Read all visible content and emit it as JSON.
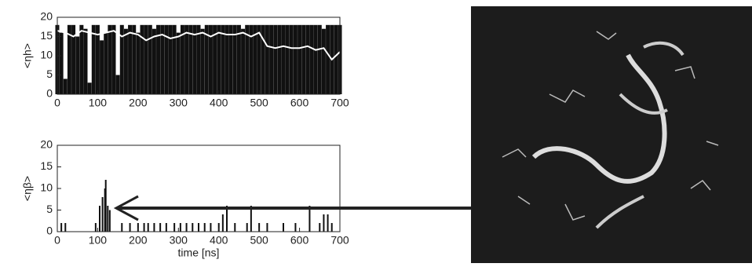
{
  "chart_data": [
    {
      "type": "bar",
      "ylabel": "<ηh>",
      "x": [
        0,
        10,
        20,
        30,
        40,
        50,
        60,
        70,
        80,
        90,
        100,
        110,
        120,
        130,
        140,
        150,
        160,
        170,
        180,
        190,
        200,
        210,
        220,
        230,
        240,
        250,
        260,
        270,
        280,
        290,
        300,
        310,
        320,
        330,
        340,
        350,
        360,
        370,
        380,
        390,
        400,
        410,
        420,
        430,
        440,
        450,
        460,
        470,
        480,
        490,
        500,
        510,
        520,
        530,
        540,
        550,
        560,
        570,
        580,
        590,
        600,
        610,
        620,
        630,
        640,
        650,
        660,
        670,
        680,
        690,
        700
      ],
      "values": [
        18,
        16,
        4,
        18,
        18,
        15,
        18,
        17,
        3,
        18,
        18,
        14,
        16,
        18,
        18,
        5,
        18,
        17,
        18,
        18,
        16,
        18,
        18,
        18,
        17,
        18,
        18,
        18,
        18,
        18,
        16,
        18,
        18,
        18,
        18,
        18,
        17,
        18,
        18,
        18,
        18,
        18,
        18,
        18,
        18,
        18,
        17,
        18,
        18,
        18,
        18,
        18,
        18,
        18,
        18,
        18,
        18,
        18,
        18,
        18,
        18,
        18,
        18,
        18,
        18,
        18,
        17,
        18,
        18,
        18,
        18
      ],
      "color": "#111111",
      "overlay": {
        "type": "line",
        "color": "#ffffff",
        "x": [
          0,
          20,
          40,
          60,
          80,
          100,
          120,
          140,
          160,
          180,
          200,
          220,
          240,
          260,
          280,
          300,
          320,
          340,
          360,
          380,
          400,
          420,
          440,
          460,
          480,
          500,
          520,
          540,
          560,
          580,
          600,
          620,
          640,
          660,
          680,
          700
        ],
        "values": [
          16.5,
          16,
          15,
          16.5,
          16,
          15.5,
          16,
          16.5,
          15,
          16,
          15.5,
          14,
          15,
          15.5,
          14.5,
          15,
          16,
          15.5,
          16,
          15,
          16,
          15.5,
          15.5,
          16,
          15,
          16,
          12.5,
          12,
          12.5,
          12,
          12,
          12.5,
          11.5,
          12,
          9,
          11
        ]
      },
      "xlim": [
        0,
        700
      ],
      "xticks": [
        0,
        100,
        200,
        300,
        400,
        500,
        600,
        700
      ],
      "ylim": [
        0,
        20
      ],
      "yticks": [
        0,
        5,
        10,
        15,
        20
      ]
    },
    {
      "type": "bar",
      "ylabel": "<ηβ>",
      "xlabel": "time [ns]",
      "x": [
        10,
        20,
        95,
        105,
        112,
        118,
        120,
        125,
        130,
        160,
        180,
        200,
        215,
        225,
        240,
        255,
        270,
        290,
        305,
        320,
        335,
        350,
        365,
        380,
        400,
        410,
        420,
        440,
        470,
        480,
        500,
        520,
        560,
        590,
        625,
        650,
        660,
        670,
        680
      ],
      "values": [
        2,
        2,
        2,
        6,
        8,
        10,
        12,
        6,
        5,
        2,
        2,
        2,
        2,
        2,
        2,
        2,
        2,
        2,
        2,
        2,
        2,
        2,
        2,
        2,
        2,
        4,
        6,
        2,
        2,
        6,
        2,
        2,
        2,
        2,
        6,
        2,
        4,
        4,
        2
      ],
      "color": "#111111",
      "xlim": [
        0,
        700
      ],
      "xticks": [
        0,
        100,
        200,
        300,
        400,
        500,
        600,
        700
      ],
      "ylim": [
        0,
        20
      ],
      "yticks": [
        0,
        5,
        10,
        15,
        20
      ]
    }
  ]
}
